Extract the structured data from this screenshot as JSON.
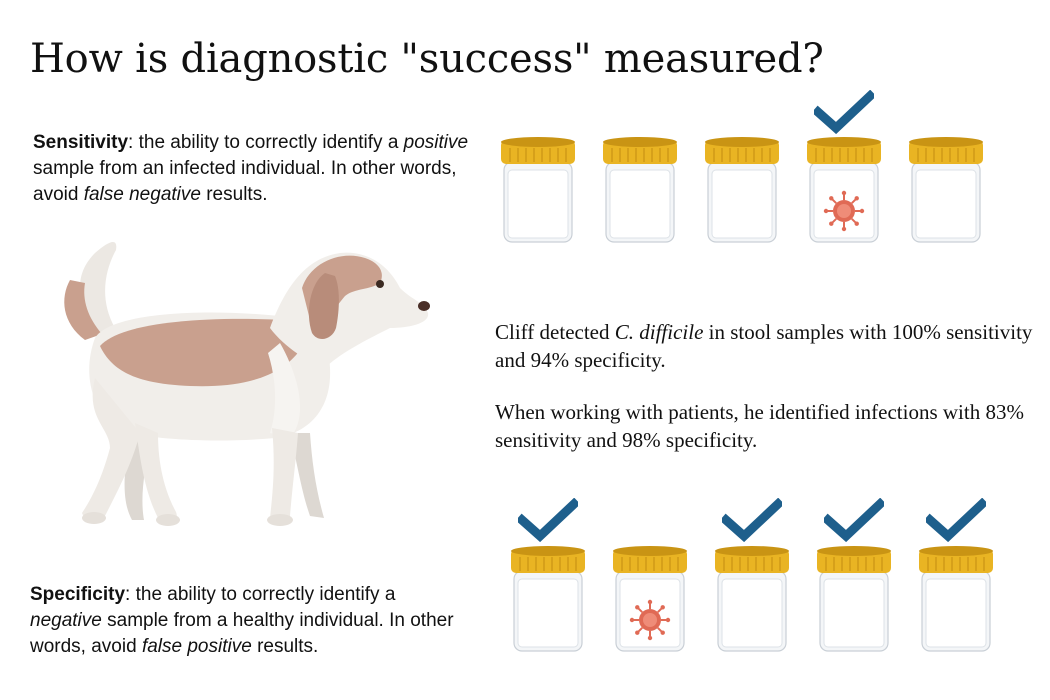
{
  "title": "How is diagnostic \"success\" measured?",
  "sensitivity": {
    "term": "Sensitivity",
    "p1": ": the ability to correctly identify a ",
    "em1": "positive",
    "p2": " sample from an infected individual. In other words, avoid ",
    "em2": "false negative",
    "p3": " results."
  },
  "specificity": {
    "term": "Specificity",
    "p1": ": the ability to correctly identify a ",
    "em1": "negative",
    "p2": " sample from a healthy individual. In other words, avoid ",
    "em2": "false positive",
    "p3": " results."
  },
  "results": {
    "line1_a": "Cliff detected ",
    "line1_em": "C. difficile",
    "line1_b": " in stool samples with 100% sensitivity and 94% specificity.",
    "line2": "When working with patients, he identified infections with 83% sensitivity and 98% specificity."
  },
  "colors": {
    "lid": "#e9b423",
    "lid_dark": "#c99414",
    "check": "#1e5f8c",
    "virus": "#e06a55",
    "dog_patch": "#c9a08e",
    "dog_body": "#f1eeea"
  },
  "top_row": [
    {
      "infected": false,
      "checked": false
    },
    {
      "infected": false,
      "checked": false
    },
    {
      "infected": false,
      "checked": false
    },
    {
      "infected": true,
      "checked": true
    },
    {
      "infected": false,
      "checked": false
    }
  ],
  "bottom_row": [
    {
      "infected": false,
      "checked": true
    },
    {
      "infected": true,
      "checked": false
    },
    {
      "infected": false,
      "checked": true
    },
    {
      "infected": false,
      "checked": true
    },
    {
      "infected": false,
      "checked": true
    }
  ]
}
